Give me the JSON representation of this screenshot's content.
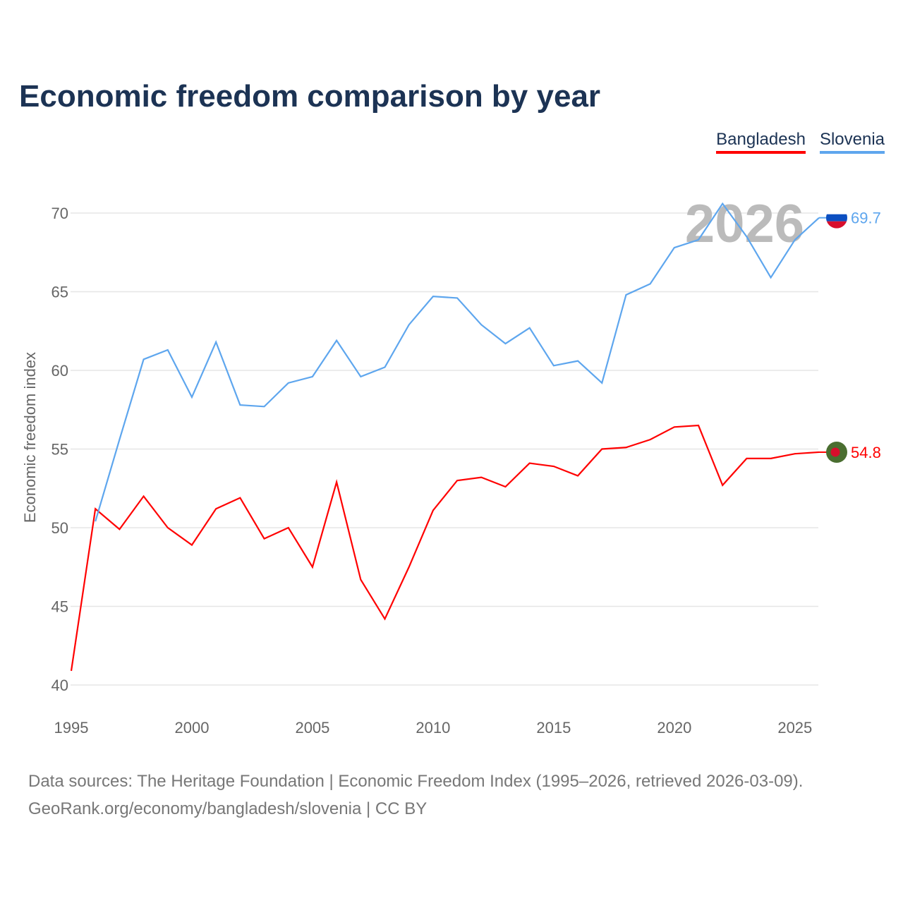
{
  "title": "Economic freedom comparison by year",
  "legend": [
    {
      "label": "Bangladesh",
      "color": "#ff0000"
    },
    {
      "label": "Slovenia",
      "color": "#5ea6ee"
    }
  ],
  "footer": {
    "line1": "Data sources: The Heritage Foundation | Economic Freedom Index (1995–2026, retrieved 2026-03-09).",
    "line2": "GeoRank.org/economy/bangladesh/slovenia | CC BY"
  },
  "chart_data": {
    "type": "line",
    "title": "Economic freedom comparison by year",
    "xlabel": "",
    "ylabel": "Economic freedom index",
    "xlim": [
      1995,
      2026
    ],
    "ylim": [
      40,
      70
    ],
    "xticks": [
      "1995",
      "2000",
      "2005",
      "2010",
      "2015",
      "2020",
      "2025"
    ],
    "yticks": [
      "40",
      "45",
      "50",
      "55",
      "60",
      "65",
      "70"
    ],
    "watermark_year": "2026",
    "series": [
      {
        "name": "Bangladesh",
        "color": "#ff0000",
        "end_label": "54.8",
        "flag": "bangladesh-flag",
        "x": [
          1995,
          1996,
          1997,
          1998,
          1999,
          2000,
          2001,
          2002,
          2003,
          2004,
          2005,
          2006,
          2007,
          2008,
          2009,
          2010,
          2011,
          2012,
          2013,
          2014,
          2015,
          2016,
          2017,
          2018,
          2019,
          2020,
          2021,
          2022,
          2023,
          2024,
          2025,
          2026
        ],
        "values": [
          40.9,
          51.2,
          49.9,
          52.0,
          50.0,
          48.9,
          51.2,
          51.9,
          49.3,
          50.0,
          47.5,
          52.9,
          46.7,
          44.2,
          47.5,
          51.1,
          53.0,
          53.2,
          52.6,
          54.1,
          53.9,
          53.3,
          55.0,
          55.1,
          55.6,
          56.4,
          56.5,
          52.7,
          54.4,
          54.4,
          54.7,
          54.8
        ]
      },
      {
        "name": "Slovenia",
        "color": "#5ea6ee",
        "end_label": "69.7",
        "flag": "slovenia-flag",
        "x": [
          1996,
          1997,
          1998,
          1999,
          2000,
          2001,
          2002,
          2003,
          2004,
          2005,
          2006,
          2007,
          2008,
          2009,
          2010,
          2011,
          2012,
          2013,
          2014,
          2015,
          2016,
          2017,
          2018,
          2019,
          2020,
          2021,
          2022,
          2023,
          2024,
          2025,
          2026
        ],
        "values": [
          50.4,
          55.6,
          60.7,
          61.3,
          58.3,
          61.8,
          57.8,
          57.7,
          59.2,
          59.6,
          61.9,
          59.6,
          60.2,
          62.9,
          64.7,
          64.6,
          62.9,
          61.7,
          62.7,
          60.3,
          60.6,
          59.2,
          64.8,
          65.5,
          67.8,
          68.3,
          70.6,
          68.5,
          65.9,
          68.3,
          69.7
        ]
      }
    ]
  }
}
